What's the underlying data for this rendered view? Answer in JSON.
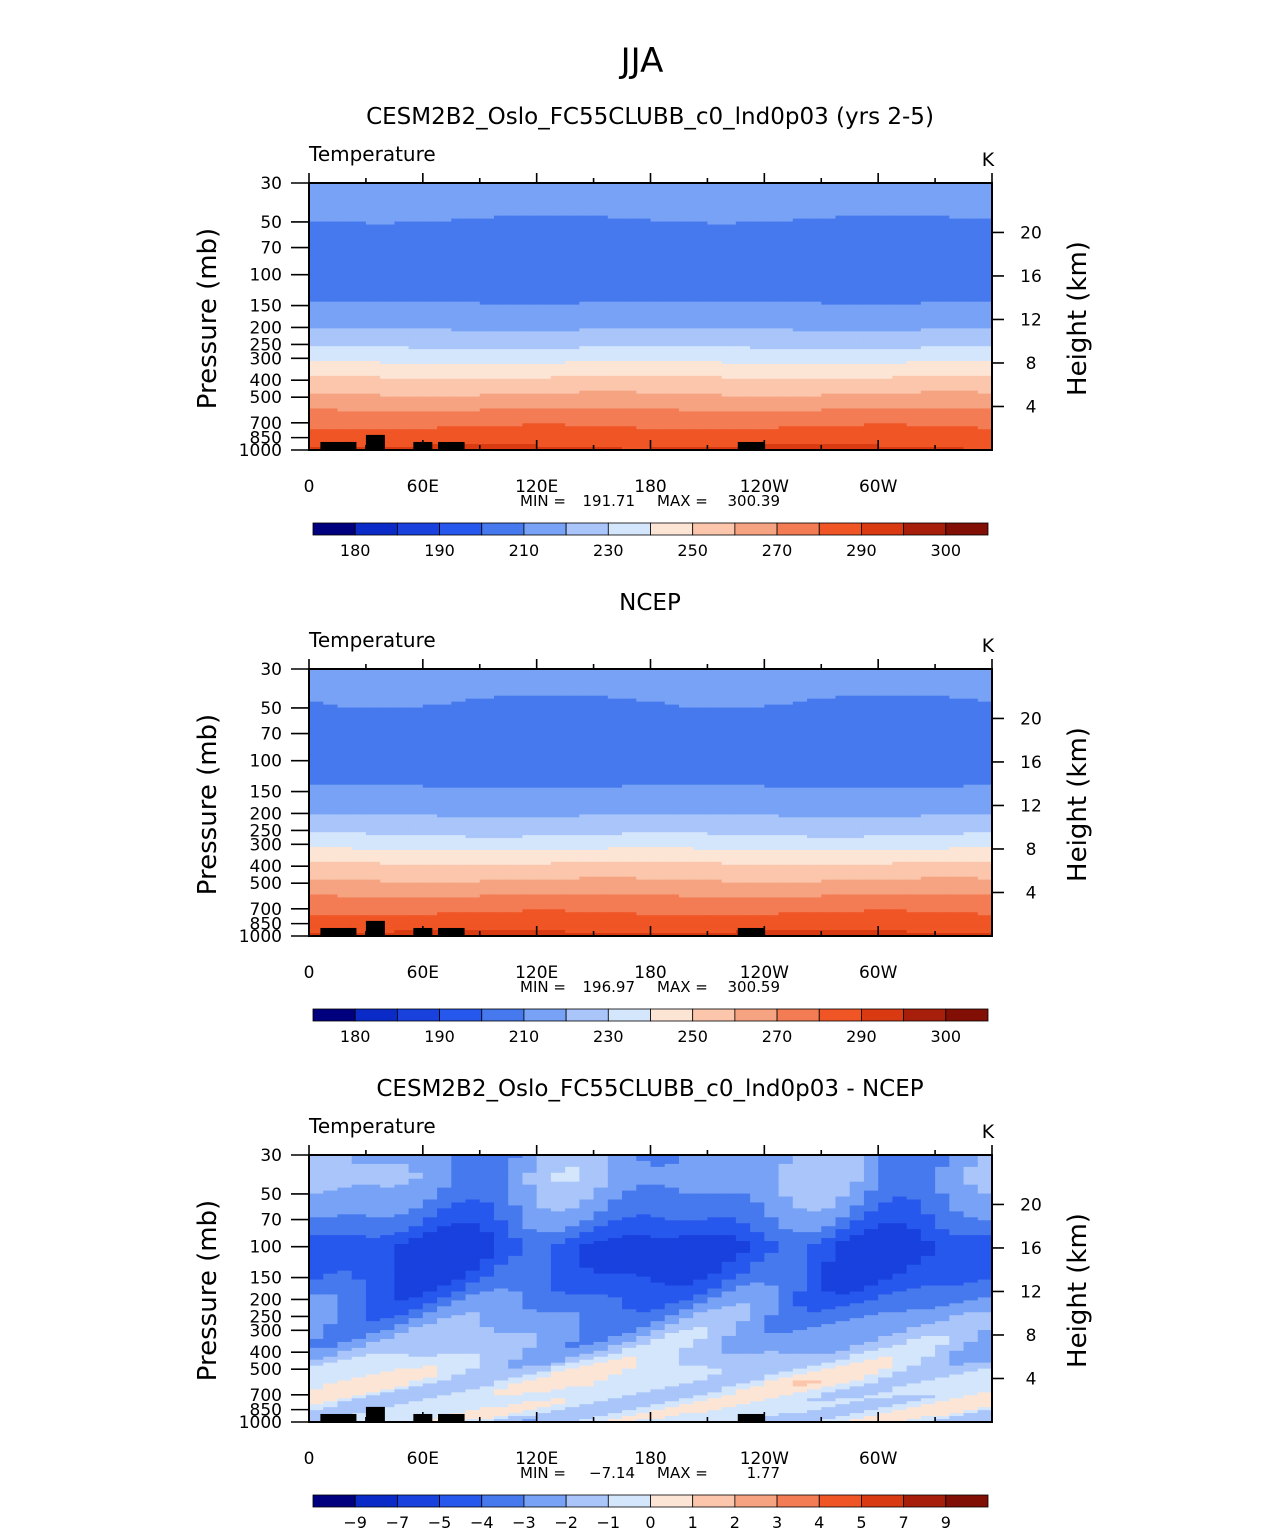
{
  "page_title": "JJA",
  "colors": {
    "temperature_scale": [
      "#00007f",
      "#0a2bc8",
      "#1941de",
      "#2758ee",
      "#4679ee",
      "#78a2f5",
      "#a9c5fa",
      "#d4e6fb",
      "#fde5d6",
      "#fbc6ac",
      "#f6a382",
      "#f37c54",
      "#f05525",
      "#d93a11",
      "#a71f0a",
      "#820f05"
    ],
    "difference_scale": [
      "#00007f",
      "#0a2bc8",
      "#1941de",
      "#2758ee",
      "#4679ee",
      "#78a2f5",
      "#a9c5fa",
      "#d4e6fb",
      "#fde5d6",
      "#fbc6ac",
      "#f6a382",
      "#f37c54",
      "#f05525",
      "#d93a11",
      "#a71f0a",
      "#820f05"
    ]
  },
  "chart_data": [
    {
      "type": "heatmap",
      "title": "CESM2B2_Oslo_FC55CLUBB_c0_lnd0p03 (yrs 2-5)",
      "left_label": "Temperature",
      "right_label": "K",
      "ylabel": "Pressure (mb)",
      "y2label": "Height (km)",
      "x_ticks": [
        "0",
        "60E",
        "120E",
        "180",
        "120W",
        "60W"
      ],
      "x_tick_lons": [
        0,
        60,
        120,
        180,
        240,
        300
      ],
      "xlim": [
        0,
        360
      ],
      "y_ticks": [
        "30",
        "50",
        "70",
        "100",
        "150",
        "200",
        "250",
        "300",
        "400",
        "500",
        "700",
        "850",
        "1000"
      ],
      "y_tick_values": [
        30,
        50,
        70,
        100,
        150,
        200,
        250,
        300,
        400,
        500,
        700,
        850,
        1000
      ],
      "ylim": [
        1000,
        30
      ],
      "height_ticks": [
        "20",
        "16",
        "12",
        "8",
        "4"
      ],
      "height_values": [
        20,
        16,
        12,
        8,
        4
      ],
      "stats": {
        "min_label": "MIN =",
        "min": "191.71",
        "max_label": "MAX =",
        "max": "300.39"
      },
      "colorbar_labels": [
        "180",
        "190",
        "210",
        "230",
        "250",
        "270",
        "290",
        "300"
      ],
      "levels": [
        175,
        180,
        185,
        190,
        200,
        210,
        220,
        230,
        240,
        250,
        260,
        270,
        280,
        290,
        295,
        300
      ],
      "profile": [
        {
          "p": 30,
          "v": 215
        },
        {
          "p": 45,
          "v": 211
        },
        {
          "p": 60,
          "v": 207
        },
        {
          "p": 80,
          "v": 203
        },
        {
          "p": 100,
          "v": 201
        },
        {
          "p": 130,
          "v": 205
        },
        {
          "p": 150,
          "v": 212
        },
        {
          "p": 200,
          "v": 219
        },
        {
          "p": 250,
          "v": 228
        },
        {
          "p": 300,
          "v": 237
        },
        {
          "p": 350,
          "v": 245
        },
        {
          "p": 400,
          "v": 252
        },
        {
          "p": 500,
          "v": 262
        },
        {
          "p": 600,
          "v": 271
        },
        {
          "p": 700,
          "v": 278
        },
        {
          "p": 850,
          "v": 285
        },
        {
          "p": 1000,
          "v": 292
        }
      ]
    },
    {
      "type": "heatmap",
      "title": "NCEP",
      "left_label": "Temperature",
      "right_label": "K",
      "ylabel": "Pressure (mb)",
      "y2label": "Height (km)",
      "x_ticks": [
        "0",
        "60E",
        "120E",
        "180",
        "120W",
        "60W"
      ],
      "x_tick_lons": [
        0,
        60,
        120,
        180,
        240,
        300
      ],
      "xlim": [
        0,
        360
      ],
      "y_ticks": [
        "30",
        "50",
        "70",
        "100",
        "150",
        "200",
        "250",
        "300",
        "400",
        "500",
        "700",
        "850",
        "1000"
      ],
      "y_tick_values": [
        30,
        50,
        70,
        100,
        150,
        200,
        250,
        300,
        400,
        500,
        700,
        850,
        1000
      ],
      "ylim": [
        1000,
        30
      ],
      "height_ticks": [
        "20",
        "16",
        "12",
        "8",
        "4"
      ],
      "height_values": [
        20,
        16,
        12,
        8,
        4
      ],
      "stats": {
        "min_label": "MIN =",
        "min": "196.97",
        "max_label": "MAX =",
        "max": "300.59"
      },
      "colorbar_labels": [
        "180",
        "190",
        "210",
        "230",
        "250",
        "270",
        "290",
        "300"
      ],
      "levels": [
        175,
        180,
        185,
        190,
        200,
        210,
        220,
        230,
        240,
        250,
        260,
        270,
        280,
        290,
        295,
        300
      ],
      "profile": [
        {
          "p": 30,
          "v": 214
        },
        {
          "p": 45,
          "v": 210
        },
        {
          "p": 70,
          "v": 207
        },
        {
          "p": 90,
          "v": 203
        },
        {
          "p": 100,
          "v": 202
        },
        {
          "p": 120,
          "v": 205
        },
        {
          "p": 150,
          "v": 212
        },
        {
          "p": 200,
          "v": 219
        },
        {
          "p": 250,
          "v": 227
        },
        {
          "p": 300,
          "v": 236
        },
        {
          "p": 350,
          "v": 245
        },
        {
          "p": 400,
          "v": 252
        },
        {
          "p": 500,
          "v": 262
        },
        {
          "p": 600,
          "v": 271
        },
        {
          "p": 700,
          "v": 278
        },
        {
          "p": 850,
          "v": 285
        },
        {
          "p": 1000,
          "v": 293
        }
      ]
    },
    {
      "type": "heatmap",
      "title": "CESM2B2_Oslo_FC55CLUBB_c0_lnd0p03 - NCEP",
      "left_label": "Temperature",
      "right_label": "K",
      "ylabel": "Pressure (mb)",
      "y2label": "Height (km)",
      "x_ticks": [
        "0",
        "60E",
        "120E",
        "180",
        "120W",
        "60W"
      ],
      "x_tick_lons": [
        0,
        60,
        120,
        180,
        240,
        300
      ],
      "xlim": [
        0,
        360
      ],
      "y_ticks": [
        "30",
        "50",
        "70",
        "100",
        "150",
        "200",
        "250",
        "300",
        "400",
        "500",
        "700",
        "850",
        "1000"
      ],
      "y_tick_values": [
        30,
        50,
        70,
        100,
        150,
        200,
        250,
        300,
        400,
        500,
        700,
        850,
        1000
      ],
      "ylim": [
        1000,
        30
      ],
      "height_ticks": [
        "20",
        "16",
        "12",
        "8",
        "4"
      ],
      "height_values": [
        20,
        16,
        12,
        8,
        4
      ],
      "stats": {
        "min_label": "MIN =",
        "min": "−7.14",
        "max_label": "MAX =",
        "max": "1.77"
      },
      "colorbar_labels": [
        "−9",
        "−7",
        "−5",
        "−4",
        "−3",
        "−2",
        "−1",
        "0",
        "1",
        "2",
        "3",
        "4",
        "5",
        "7",
        "9"
      ],
      "levels": [
        -11,
        -9,
        -7,
        -5,
        -4,
        -3,
        -2,
        -1,
        0,
        1,
        2,
        3,
        4,
        5,
        7,
        9
      ],
      "profile": [
        {
          "p": 30,
          "v": -2.5
        },
        {
          "p": 40,
          "v": -2.2
        },
        {
          "p": 50,
          "v": -2.6
        },
        {
          "p": 60,
          "v": -3.1
        },
        {
          "p": 75,
          "v": -3.8
        },
        {
          "p": 100,
          "v": -5.2
        },
        {
          "p": 150,
          "v": -4.6
        },
        {
          "p": 200,
          "v": -3.6
        },
        {
          "p": 250,
          "v": -2.8
        },
        {
          "p": 300,
          "v": -2.3
        },
        {
          "p": 400,
          "v": -1.6
        },
        {
          "p": 500,
          "v": -0.6
        },
        {
          "p": 600,
          "v": -0.3
        },
        {
          "p": 700,
          "v": -0.6
        },
        {
          "p": 850,
          "v": -0.5
        },
        {
          "p": 1000,
          "v": -0.7
        }
      ]
    }
  ]
}
